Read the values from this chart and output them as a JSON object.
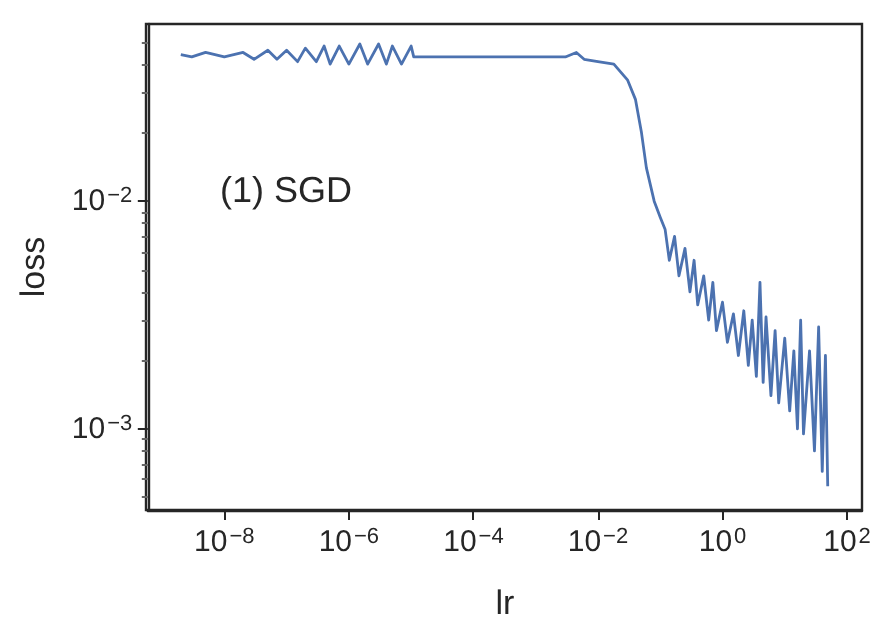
{
  "chart_data": {
    "type": "line",
    "xlabel": "lr",
    "ylabel": "loss",
    "log": "xy",
    "grid": false,
    "marker": "none",
    "annotations": [
      "(1) SGD"
    ],
    "xlim": [
      5.9e-10,
      174
    ],
    "ylim": [
      0.00044,
      0.06
    ],
    "xticks": [
      {
        "value": 1e-08,
        "label": "10$^{−8}$"
      },
      {
        "value": 1e-06,
        "label": "10$^{−6}$"
      },
      {
        "value": 0.0001,
        "label": "10$^{−4}$"
      },
      {
        "value": 0.01,
        "label": "10$^{−2}$"
      },
      {
        "value": 1,
        "label": "10$^{0}$"
      },
      {
        "value": 100,
        "label": "10$^{2}$"
      }
    ],
    "yticks": [
      {
        "value": 0.001,
        "label": "10$^{−3}$"
      },
      {
        "value": 0.01,
        "label": "10$^{−2}$"
      }
    ],
    "series": [
      {
        "color": "#4c72b0",
        "x": [
          2e-09,
          3e-09,
          5e-09,
          1e-08,
          2e-08,
          3e-08,
          5e-08,
          7e-08,
          1e-07,
          1.5e-07,
          2e-07,
          3e-07,
          4e-07,
          5e-07,
          7e-07,
          1e-06,
          1.5e-06,
          2e-06,
          3e-06,
          4e-06,
          5e-06,
          7e-06,
          1e-05,
          1.1e-05,
          0.001,
          0.003,
          0.0045,
          0.006,
          0.01,
          0.018,
          0.03,
          0.04,
          0.05,
          0.06,
          0.08,
          0.1,
          0.12,
          0.14,
          0.17,
          0.2,
          0.25,
          0.3,
          0.35,
          0.4,
          0.5,
          0.6,
          0.7,
          0.8,
          1,
          1.2,
          1.5,
          1.8,
          2.2,
          2.6,
          3,
          3.5,
          4,
          4.5,
          5,
          6,
          7,
          8,
          10,
          12,
          14,
          16,
          18,
          20,
          25,
          30,
          35,
          40,
          45,
          49
        ],
        "values": [
          0.044,
          0.043,
          0.045,
          0.043,
          0.045,
          0.042,
          0.046,
          0.042,
          0.046,
          0.041,
          0.047,
          0.041,
          0.048,
          0.04,
          0.048,
          0.04,
          0.049,
          0.04,
          0.049,
          0.04,
          0.048,
          0.04,
          0.048,
          0.043,
          0.043,
          0.043,
          0.045,
          0.042,
          0.041,
          0.04,
          0.034,
          0.028,
          0.02,
          0.014,
          0.01,
          0.0085,
          0.0075,
          0.0055,
          0.007,
          0.0047,
          0.0062,
          0.004,
          0.0055,
          0.0035,
          0.0047,
          0.003,
          0.0044,
          0.0027,
          0.0036,
          0.0024,
          0.0032,
          0.0021,
          0.0033,
          0.0019,
          0.003,
          0.0017,
          0.0044,
          0.0016,
          0.0031,
          0.0014,
          0.0027,
          0.0013,
          0.0025,
          0.0012,
          0.0022,
          0.001,
          0.003,
          0.00095,
          0.0022,
          0.0008,
          0.0028,
          0.00065,
          0.0021,
          0.00056
        ]
      }
    ]
  }
}
